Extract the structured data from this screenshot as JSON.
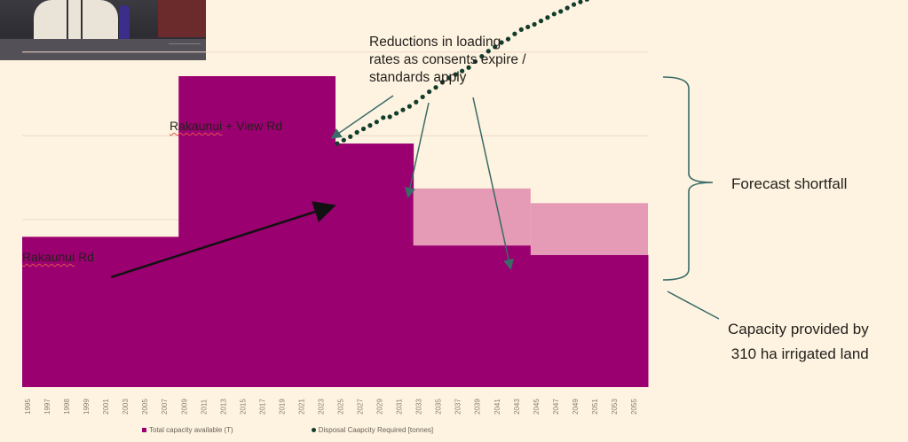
{
  "video_inset": {
    "description": "conference room video feed"
  },
  "chart_data": {
    "type": "area",
    "title": "",
    "xlabel": "",
    "ylabel": "",
    "grid": true,
    "legend_position": "bottom",
    "y_axis_unit": "tonnes (unlabeled)",
    "ylim": [
      0,
      4
    ],
    "x_tick_labels": [
      "1995",
      "1997",
      "1998",
      "1999",
      "2001",
      "2003",
      "2005",
      "2007",
      "2009",
      "2011",
      "2013",
      "2015",
      "2017",
      "2019",
      "2021",
      "2023",
      "2025",
      "2027",
      "2029",
      "2031",
      "2033",
      "2035",
      "2037",
      "2039",
      "2041",
      "2043",
      "2045",
      "2047",
      "2049",
      "2051",
      "2053",
      "2055"
    ],
    "series": [
      {
        "name": "Total capacity available (T)",
        "type": "step-area",
        "color": "#9b0070",
        "steps": [
          {
            "from_tick": 0,
            "to_tick": 8,
            "value": 1.74
          },
          {
            "from_tick": 8,
            "to_tick": 16,
            "value": 3.6
          },
          {
            "from_tick": 16,
            "to_tick": 20,
            "value": 2.82
          },
          {
            "from_tick": 20,
            "to_tick": 26,
            "value": 1.64
          },
          {
            "from_tick": 26,
            "to_tick": 32,
            "value": 1.53
          }
        ]
      },
      {
        "name": "Reduction in capacity (consents expire / standards apply)",
        "type": "step-area",
        "color": "#e59ab5",
        "steps": [
          {
            "from_tick": 20,
            "to_tick": 26,
            "from_value": 1.64,
            "to_value": 2.3
          },
          {
            "from_tick": 26,
            "to_tick": 32,
            "from_value": 1.53,
            "to_value": 2.13
          }
        ]
      },
      {
        "name": "Disposal Caapcity Required [tonnes]",
        "type": "dotted-line",
        "color": "#123c2c",
        "start_tick": 16.2,
        "end_tick": 32,
        "values": [
          2.83,
          2.87,
          2.91,
          2.96,
          3.0,
          3.04,
          3.08,
          3.13,
          3.14,
          3.18,
          3.22,
          3.26,
          3.31,
          3.37,
          3.43,
          3.48,
          3.54,
          3.59,
          3.63,
          3.67,
          3.71,
          3.78,
          3.84,
          3.9,
          3.95,
          4.0,
          4.04,
          4.1,
          4.15,
          4.18,
          4.21,
          4.25,
          4.29,
          4.33,
          4.36,
          4.4,
          4.44,
          4.47,
          4.5,
          4.54,
          4.58,
          4.62,
          4.65,
          4.69,
          4.72,
          4.76,
          4.8,
          4.84
        ]
      }
    ],
    "legend": [
      "Total capacity available (T)",
      "Disposal Caapcity Required [tonnes]"
    ],
    "annotations": [
      {
        "text": "Rakaunui Rd",
        "target": "first step (1995–2007)"
      },
      {
        "text": "Rakaunui + View Rd",
        "target": "second step (2009–2023)"
      },
      {
        "text": "Reductions in loading rates as consents expire / standards apply",
        "target": "capacity step-downs at 2025, 2031, 2043"
      },
      {
        "text": "Forecast shortfall",
        "target": "brace spanning gap between demand and capacity"
      },
      {
        "text": "Capacity provided by 310 ha irrigated land",
        "target": "remaining capacity after 2043"
      }
    ]
  },
  "labels": {
    "rakaunui": "Rakaunui Rd",
    "rakaunui_view": "Rakaunui + View Rd",
    "reductions": [
      "Reductions in loading",
      "rates as consents expire /",
      "standards apply"
    ],
    "shortfall": "Forecast shortfall",
    "capacity": [
      "Capacity provided by",
      "310 ha irrigated land"
    ]
  },
  "legend": {
    "capacity": "Total capacity available (T)",
    "disposal": "Disposal Caapcity Required [tonnes]"
  },
  "colors": {
    "background": "#fdf3e0",
    "capacity": "#9b0070",
    "reduction": "#e59ab5",
    "demand_dots": "#123c2c",
    "annotation_lines": "#3a6b68",
    "gridline": "#efd9c8"
  }
}
